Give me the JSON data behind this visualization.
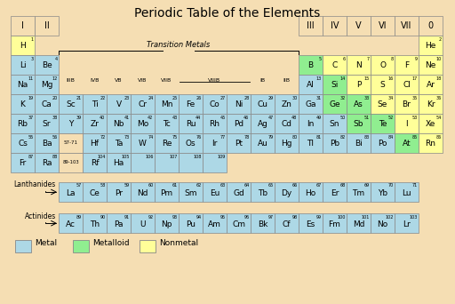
{
  "title": "Periodic Table of the Elements",
  "bg_color": "#F5DEB3",
  "metal_color": "#ADD8E6",
  "metalloid_color": "#90EE90",
  "nonmetal_color": "#FFFF99",
  "border_color": "#888888",
  "elements": [
    {
      "sym": "H",
      "num": 1,
      "col": 0,
      "row": 1,
      "type": "nonmetal"
    },
    {
      "sym": "He",
      "num": 2,
      "col": 17,
      "row": 1,
      "type": "nonmetal"
    },
    {
      "sym": "Li",
      "num": 3,
      "col": 0,
      "row": 2,
      "type": "metal"
    },
    {
      "sym": "Be",
      "num": 4,
      "col": 1,
      "row": 2,
      "type": "metal"
    },
    {
      "sym": "B",
      "num": 5,
      "col": 12,
      "row": 2,
      "type": "metalloid"
    },
    {
      "sym": "C",
      "num": 6,
      "col": 13,
      "row": 2,
      "type": "nonmetal"
    },
    {
      "sym": "N",
      "num": 7,
      "col": 14,
      "row": 2,
      "type": "nonmetal"
    },
    {
      "sym": "O",
      "num": 8,
      "col": 15,
      "row": 2,
      "type": "nonmetal"
    },
    {
      "sym": "F",
      "num": 9,
      "col": 16,
      "row": 2,
      "type": "nonmetal"
    },
    {
      "sym": "Ne",
      "num": 10,
      "col": 17,
      "row": 2,
      "type": "nonmetal"
    },
    {
      "sym": "Na",
      "num": 11,
      "col": 0,
      "row": 3,
      "type": "metal"
    },
    {
      "sym": "Mg",
      "num": 12,
      "col": 1,
      "row": 3,
      "type": "metal"
    },
    {
      "sym": "Al",
      "num": 13,
      "col": 12,
      "row": 3,
      "type": "metal"
    },
    {
      "sym": "Si",
      "num": 14,
      "col": 13,
      "row": 3,
      "type": "metalloid"
    },
    {
      "sym": "P",
      "num": 15,
      "col": 14,
      "row": 3,
      "type": "nonmetal"
    },
    {
      "sym": "S",
      "num": 16,
      "col": 15,
      "row": 3,
      "type": "nonmetal"
    },
    {
      "sym": "Cl",
      "num": 17,
      "col": 16,
      "row": 3,
      "type": "nonmetal"
    },
    {
      "sym": "Ar",
      "num": 18,
      "col": 17,
      "row": 3,
      "type": "nonmetal"
    },
    {
      "sym": "K",
      "num": 19,
      "col": 0,
      "row": 4,
      "type": "metal"
    },
    {
      "sym": "Ca",
      "num": 20,
      "col": 1,
      "row": 4,
      "type": "metal"
    },
    {
      "sym": "Sc",
      "num": 21,
      "col": 2,
      "row": 4,
      "type": "metal"
    },
    {
      "sym": "Ti",
      "num": 22,
      "col": 3,
      "row": 4,
      "type": "metal"
    },
    {
      "sym": "V",
      "num": 23,
      "col": 4,
      "row": 4,
      "type": "metal"
    },
    {
      "sym": "Cr",
      "num": 24,
      "col": 5,
      "row": 4,
      "type": "metal"
    },
    {
      "sym": "Mn",
      "num": 25,
      "col": 6,
      "row": 4,
      "type": "metal"
    },
    {
      "sym": "Fe",
      "num": 26,
      "col": 7,
      "row": 4,
      "type": "metal"
    },
    {
      "sym": "Co",
      "num": 27,
      "col": 8,
      "row": 4,
      "type": "metal"
    },
    {
      "sym": "Ni",
      "num": 28,
      "col": 9,
      "row": 4,
      "type": "metal"
    },
    {
      "sym": "Cu",
      "num": 29,
      "col": 10,
      "row": 4,
      "type": "metal"
    },
    {
      "sym": "Zn",
      "num": 30,
      "col": 11,
      "row": 4,
      "type": "metal"
    },
    {
      "sym": "Ga",
      "num": 31,
      "col": 12,
      "row": 4,
      "type": "metal"
    },
    {
      "sym": "Ge",
      "num": 32,
      "col": 13,
      "row": 4,
      "type": "metalloid"
    },
    {
      "sym": "As",
      "num": 33,
      "col": 14,
      "row": 4,
      "type": "metalloid"
    },
    {
      "sym": "Se",
      "num": 34,
      "col": 15,
      "row": 4,
      "type": "nonmetal"
    },
    {
      "sym": "Br",
      "num": 35,
      "col": 16,
      "row": 4,
      "type": "nonmetal"
    },
    {
      "sym": "Kr",
      "num": 36,
      "col": 17,
      "row": 4,
      "type": "nonmetal"
    },
    {
      "sym": "Rb",
      "num": 37,
      "col": 0,
      "row": 5,
      "type": "metal"
    },
    {
      "sym": "Sr",
      "num": 38,
      "col": 1,
      "row": 5,
      "type": "metal"
    },
    {
      "sym": "Y",
      "num": 39,
      "col": 2,
      "row": 5,
      "type": "metal"
    },
    {
      "sym": "Zr",
      "num": 40,
      "col": 3,
      "row": 5,
      "type": "metal"
    },
    {
      "sym": "Nb",
      "num": 41,
      "col": 4,
      "row": 5,
      "type": "metal"
    },
    {
      "sym": "Mo",
      "num": 42,
      "col": 5,
      "row": 5,
      "type": "metal"
    },
    {
      "sym": "Tc",
      "num": 43,
      "col": 6,
      "row": 5,
      "type": "metal"
    },
    {
      "sym": "Ru",
      "num": 44,
      "col": 7,
      "row": 5,
      "type": "metal"
    },
    {
      "sym": "Rh",
      "num": 45,
      "col": 8,
      "row": 5,
      "type": "metal"
    },
    {
      "sym": "Pd",
      "num": 46,
      "col": 9,
      "row": 5,
      "type": "metal"
    },
    {
      "sym": "Ag",
      "num": 47,
      "col": 10,
      "row": 5,
      "type": "metal"
    },
    {
      "sym": "Cd",
      "num": 48,
      "col": 11,
      "row": 5,
      "type": "metal"
    },
    {
      "sym": "In",
      "num": 49,
      "col": 12,
      "row": 5,
      "type": "metal"
    },
    {
      "sym": "Sn",
      "num": 50,
      "col": 13,
      "row": 5,
      "type": "metal"
    },
    {
      "sym": "Sb",
      "num": 51,
      "col": 14,
      "row": 5,
      "type": "metalloid"
    },
    {
      "sym": "Te",
      "num": 52,
      "col": 15,
      "row": 5,
      "type": "metalloid"
    },
    {
      "sym": "I",
      "num": 53,
      "col": 16,
      "row": 5,
      "type": "nonmetal"
    },
    {
      "sym": "Xe",
      "num": 54,
      "col": 17,
      "row": 5,
      "type": "nonmetal"
    },
    {
      "sym": "Cs",
      "num": 55,
      "col": 0,
      "row": 6,
      "type": "metal"
    },
    {
      "sym": "Ba",
      "num": 56,
      "col": 1,
      "row": 6,
      "type": "metal"
    },
    {
      "sym": "Hf",
      "num": 72,
      "col": 3,
      "row": 6,
      "type": "metal"
    },
    {
      "sym": "Ta",
      "num": 73,
      "col": 4,
      "row": 6,
      "type": "metal"
    },
    {
      "sym": "W",
      "num": 74,
      "col": 5,
      "row": 6,
      "type": "metal"
    },
    {
      "sym": "Re",
      "num": 75,
      "col": 6,
      "row": 6,
      "type": "metal"
    },
    {
      "sym": "Os",
      "num": 76,
      "col": 7,
      "row": 6,
      "type": "metal"
    },
    {
      "sym": "Ir",
      "num": 77,
      "col": 8,
      "row": 6,
      "type": "metal"
    },
    {
      "sym": "Pt",
      "num": 78,
      "col": 9,
      "row": 6,
      "type": "metal"
    },
    {
      "sym": "Au",
      "num": 79,
      "col": 10,
      "row": 6,
      "type": "metal"
    },
    {
      "sym": "Hg",
      "num": 80,
      "col": 11,
      "row": 6,
      "type": "metal"
    },
    {
      "sym": "Tl",
      "num": 81,
      "col": 12,
      "row": 6,
      "type": "metal"
    },
    {
      "sym": "Pb",
      "num": 82,
      "col": 13,
      "row": 6,
      "type": "metal"
    },
    {
      "sym": "Bi",
      "num": 83,
      "col": 14,
      "row": 6,
      "type": "metal"
    },
    {
      "sym": "Po",
      "num": 84,
      "col": 15,
      "row": 6,
      "type": "metal"
    },
    {
      "sym": "At",
      "num": 85,
      "col": 16,
      "row": 6,
      "type": "metalloid"
    },
    {
      "sym": "Rn",
      "num": 86,
      "col": 17,
      "row": 6,
      "type": "nonmetal"
    },
    {
      "sym": "Fr",
      "num": 87,
      "col": 0,
      "row": 7,
      "type": "metal"
    },
    {
      "sym": "Ra",
      "num": 88,
      "col": 1,
      "row": 7,
      "type": "metal"
    },
    {
      "sym": "Rf",
      "num": 104,
      "col": 3,
      "row": 7,
      "type": "metal"
    },
    {
      "sym": "Ha",
      "num": 105,
      "col": 4,
      "row": 7,
      "type": "metal"
    },
    {
      "sym": "",
      "num": 106,
      "col": 5,
      "row": 7,
      "type": "metal"
    },
    {
      "sym": "",
      "num": 107,
      "col": 6,
      "row": 7,
      "type": "metal"
    },
    {
      "sym": "",
      "num": 108,
      "col": 7,
      "row": 7,
      "type": "metal"
    },
    {
      "sym": "",
      "num": 109,
      "col": 8,
      "row": 7,
      "type": "metal"
    },
    {
      "sym": "La",
      "num": 57,
      "col": 2,
      "row": 9,
      "type": "metal"
    },
    {
      "sym": "Ce",
      "num": 58,
      "col": 3,
      "row": 9,
      "type": "metal"
    },
    {
      "sym": "Pr",
      "num": 59,
      "col": 4,
      "row": 9,
      "type": "metal"
    },
    {
      "sym": "Nd",
      "num": 60,
      "col": 5,
      "row": 9,
      "type": "metal"
    },
    {
      "sym": "Pm",
      "num": 61,
      "col": 6,
      "row": 9,
      "type": "metal"
    },
    {
      "sym": "Sm",
      "num": 62,
      "col": 7,
      "row": 9,
      "type": "metal"
    },
    {
      "sym": "Eu",
      "num": 63,
      "col": 8,
      "row": 9,
      "type": "metal"
    },
    {
      "sym": "Gd",
      "num": 64,
      "col": 9,
      "row": 9,
      "type": "metal"
    },
    {
      "sym": "Tb",
      "num": 65,
      "col": 10,
      "row": 9,
      "type": "metal"
    },
    {
      "sym": "Dy",
      "num": 66,
      "col": 11,
      "row": 9,
      "type": "metal"
    },
    {
      "sym": "Ho",
      "num": 67,
      "col": 12,
      "row": 9,
      "type": "metal"
    },
    {
      "sym": "Er",
      "num": 68,
      "col": 13,
      "row": 9,
      "type": "metal"
    },
    {
      "sym": "Tm",
      "num": 69,
      "col": 14,
      "row": 9,
      "type": "metal"
    },
    {
      "sym": "Yb",
      "num": 70,
      "col": 15,
      "row": 9,
      "type": "metal"
    },
    {
      "sym": "Lu",
      "num": 71,
      "col": 16,
      "row": 9,
      "type": "metal"
    },
    {
      "sym": "Ac",
      "num": 89,
      "col": 2,
      "row": 10,
      "type": "metal"
    },
    {
      "sym": "Th",
      "num": 90,
      "col": 3,
      "row": 10,
      "type": "metal"
    },
    {
      "sym": "Pa",
      "num": 91,
      "col": 4,
      "row": 10,
      "type": "metal"
    },
    {
      "sym": "U",
      "num": 92,
      "col": 5,
      "row": 10,
      "type": "metal"
    },
    {
      "sym": "Np",
      "num": 93,
      "col": 6,
      "row": 10,
      "type": "metal"
    },
    {
      "sym": "Pu",
      "num": 94,
      "col": 7,
      "row": 10,
      "type": "metal"
    },
    {
      "sym": "Am",
      "num": 95,
      "col": 8,
      "row": 10,
      "type": "metal"
    },
    {
      "sym": "Cm",
      "num": 96,
      "col": 9,
      "row": 10,
      "type": "metal"
    },
    {
      "sym": "Bk",
      "num": 97,
      "col": 10,
      "row": 10,
      "type": "metal"
    },
    {
      "sym": "Cf",
      "num": 98,
      "col": 11,
      "row": 10,
      "type": "metal"
    },
    {
      "sym": "Es",
      "num": 99,
      "col": 12,
      "row": 10,
      "type": "metal"
    },
    {
      "sym": "Fm",
      "num": 100,
      "col": 13,
      "row": 10,
      "type": "metal"
    },
    {
      "sym": "Md",
      "num": 101,
      "col": 14,
      "row": 10,
      "type": "metal"
    },
    {
      "sym": "No",
      "num": 102,
      "col": 15,
      "row": 10,
      "type": "metal"
    },
    {
      "sym": "Lr",
      "num": 103,
      "col": 16,
      "row": 10,
      "type": "metal"
    }
  ]
}
